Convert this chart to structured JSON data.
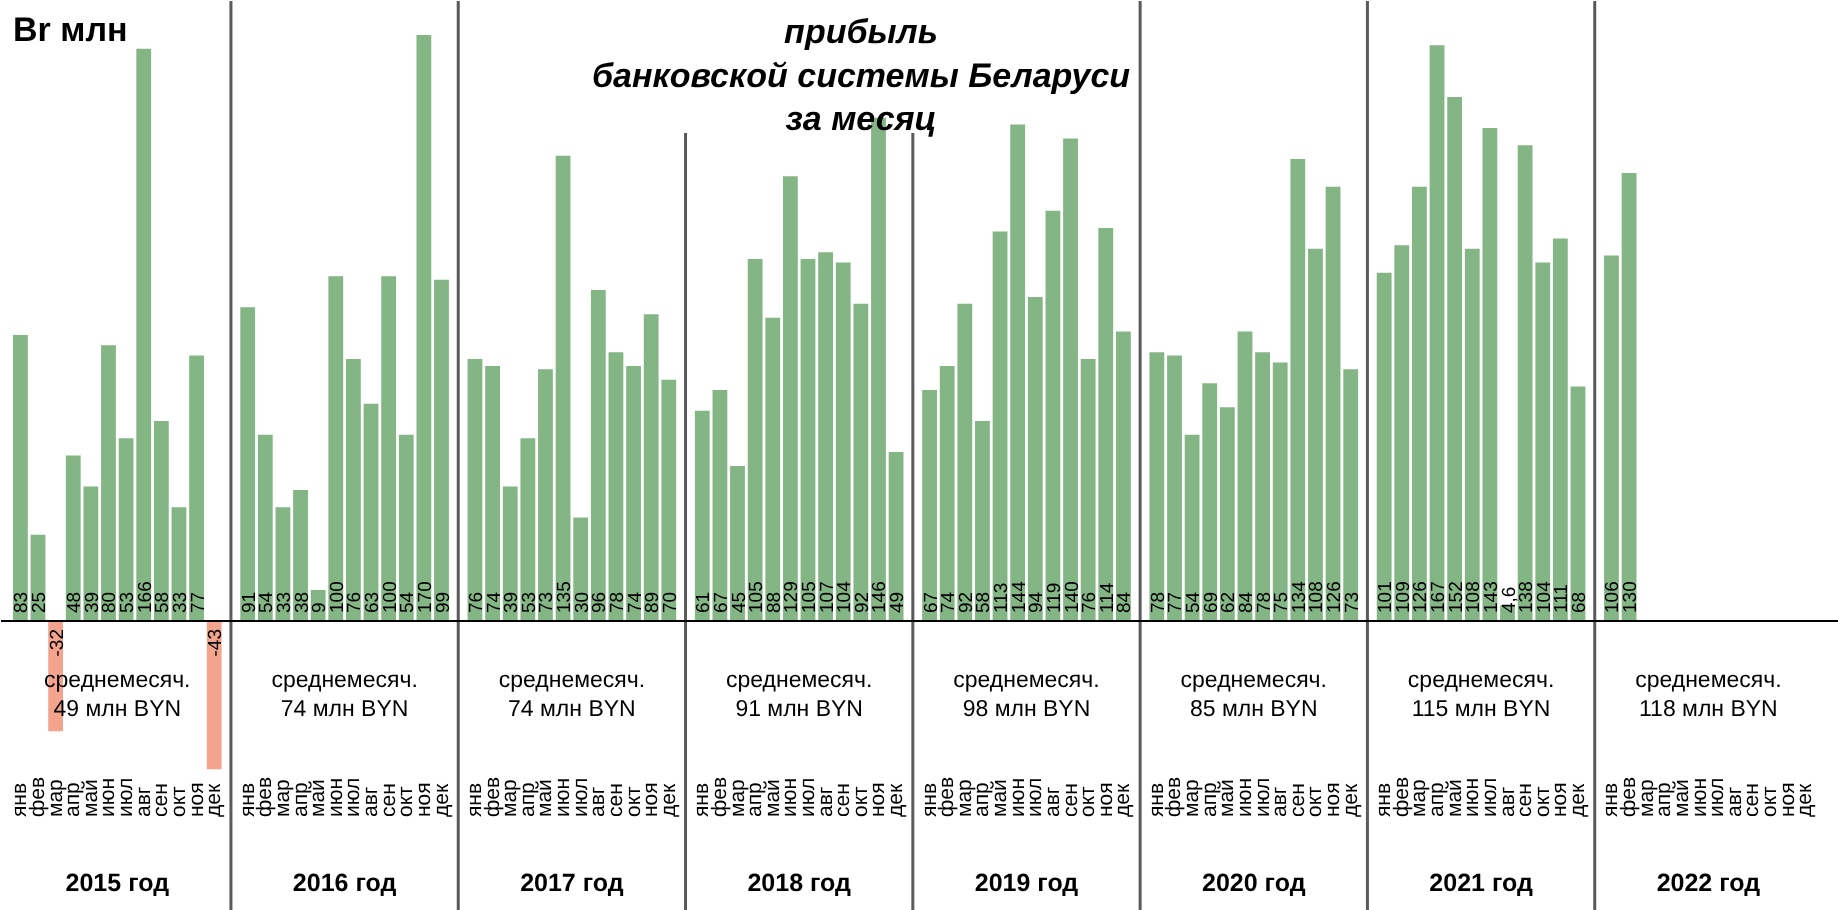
{
  "chart_data": {
    "type": "bar",
    "title": "прибыль\nбанковской системы Беларуси\nза месяц",
    "ylabel": "Br млн",
    "categories": [
      "янв",
      "фев",
      "мар",
      "апр",
      "май",
      "июн",
      "июл",
      "авг",
      "сен",
      "окт",
      "ноя",
      "дек",
      "янв",
      "фев",
      "мар",
      "апр",
      "май",
      "июн",
      "июл",
      "авг",
      "сен",
      "окт",
      "ноя",
      "дек",
      "янв",
      "фев",
      "мар",
      "апр",
      "май",
      "июн",
      "июл",
      "авг",
      "сен",
      "окт",
      "ноя",
      "дек",
      "янв",
      "фев",
      "мар",
      "апр",
      "май",
      "июн",
      "июл",
      "авг",
      "сен",
      "окт",
      "ноя",
      "дек",
      "янв",
      "фев",
      "мар",
      "апр",
      "май",
      "июн",
      "июл",
      "авг",
      "сен",
      "окт",
      "ноя",
      "дек",
      "янв",
      "фев",
      "мар",
      "апр",
      "май",
      "июн",
      "июл",
      "авг",
      "сен",
      "окт",
      "ноя",
      "дек",
      "янв",
      "фев",
      "мар",
      "апр",
      "май",
      "июн",
      "июл",
      "авг",
      "сен",
      "окт",
      "ноя",
      "дек",
      "янв",
      "фев",
      "мар",
      "апр",
      "май",
      "июн",
      "июл",
      "авг",
      "сен",
      "окт",
      "ноя",
      "дек"
    ],
    "values": [
      83,
      25,
      -32,
      48,
      39,
      80,
      53,
      166,
      58,
      33,
      77,
      -43,
      91,
      54,
      33,
      38,
      9,
      100,
      76,
      63,
      100,
      54,
      170,
      99,
      76,
      74,
      39,
      53,
      73,
      135,
      30,
      96,
      78,
      74,
      89,
      70,
      61,
      67,
      45,
      105,
      88,
      129,
      105,
      107,
      104,
      92,
      146,
      49,
      67,
      74,
      92,
      58,
      113,
      144,
      94,
      119,
      140,
      76,
      114,
      84,
      78,
      77,
      54,
      69,
      62,
      84,
      78,
      75,
      134,
      108,
      126,
      73,
      101,
      109,
      126,
      167,
      152,
      108,
      143,
      4.6,
      138,
      104,
      111,
      68,
      106,
      130,
      null,
      null,
      null,
      null,
      null,
      null,
      null,
      null,
      null,
      null
    ],
    "value_labels": [
      "83",
      "25",
      "-32",
      "48",
      "39",
      "80",
      "53",
      "166",
      "58",
      "33",
      "77",
      "-43",
      "91",
      "54",
      "33",
      "38",
      "9",
      "100",
      "76",
      "63",
      "100",
      "54",
      "170",
      "99",
      "76",
      "74",
      "39",
      "53",
      "73",
      "135",
      "30",
      "96",
      "78",
      "74",
      "89",
      "70",
      "61",
      "67",
      "45",
      "105",
      "88",
      "129",
      "105",
      "107",
      "104",
      "92",
      "146",
      "49",
      "67",
      "74",
      "92",
      "58",
      "113",
      "144",
      "94",
      "119",
      "140",
      "76",
      "114",
      "84",
      "78",
      "77",
      "54",
      "69",
      "62",
      "84",
      "78",
      "75",
      "134",
      "108",
      "126",
      "73",
      "101",
      "109",
      "126",
      "167",
      "152",
      "108",
      "143",
      "4,6",
      "138",
      "104",
      "111",
      "68",
      "106",
      "130",
      null,
      null,
      null,
      null,
      null,
      null,
      null,
      null,
      null,
      null
    ],
    "colors": [
      "#84b584",
      "#84b584",
      "#f4a38c",
      "#84b584",
      "#84b584",
      "#84b584",
      "#84b584",
      "#84b584",
      "#84b584",
      "#84b584",
      "#84b584",
      "#f4a38c",
      "#84b584",
      "#84b584",
      "#84b584",
      "#84b584",
      "#84b584",
      "#84b584",
      "#84b584",
      "#84b584",
      "#84b584",
      "#84b584",
      "#84b584",
      "#84b584",
      "#84b584",
      "#84b584",
      "#84b584",
      "#84b584",
      "#84b584",
      "#84b584",
      "#84b584",
      "#84b584",
      "#84b584",
      "#84b584",
      "#84b584",
      "#84b584",
      "#84b584",
      "#84b584",
      "#84b584",
      "#84b584",
      "#84b584",
      "#84b584",
      "#84b584",
      "#84b584",
      "#84b584",
      "#84b584",
      "#84b584",
      "#84b584",
      "#84b584",
      "#84b584",
      "#84b584",
      "#84b584",
      "#84b584",
      "#84b584",
      "#84b584",
      "#84b584",
      "#84b584",
      "#84b584",
      "#84b584",
      "#84b584",
      "#84b584",
      "#84b584",
      "#84b584",
      "#84b584",
      "#84b584",
      "#84b584",
      "#84b584",
      "#84b584",
      "#84b584",
      "#84b584",
      "#84b584",
      "#84b584",
      "#84b584",
      "#84b584",
      "#84b584",
      "#84b584",
      "#84b584",
      "#84b584",
      "#84b584",
      "#84b584",
      "#84b584",
      "#84b584",
      "#84b584",
      "#84b584",
      "#84b584",
      "#84b584",
      "#84b584",
      "#84b584",
      "#84b584",
      "#84b584",
      "#84b584",
      "#84b584",
      "#84b584",
      "#84b584",
      "#84b584",
      "#84b584"
    ],
    "annotations": [
      "среднемесяч.\n49 млн BYN",
      "2015 год",
      "среднемесяч.\n74 млн BYN",
      "2016 год",
      "среднемесяч.\n74 млн BYN",
      "2017 год",
      "среднемесяч.\n91 млн BYN",
      "2018 год",
      "среднемесяч.\n98 млн BYN",
      "2019 год",
      "среднемесяч.\n85 млн BYN",
      "2020 год",
      "среднемесяч.\n115 млн BYN",
      "2021 год",
      "среднемесяч.\n118 млн BYN",
      "2022 год"
    ]
  }
}
